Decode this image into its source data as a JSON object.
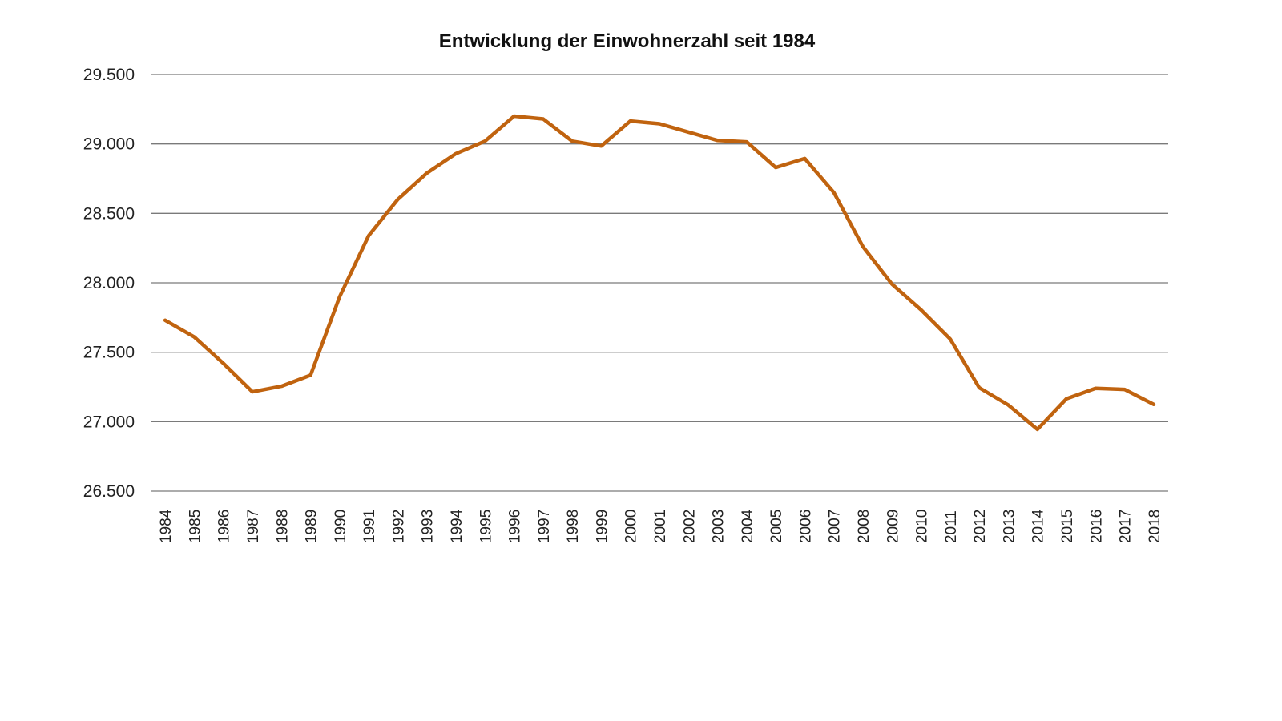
{
  "chart_data": {
    "type": "line",
    "title": "Entwicklung der Einwohnerzahl seit 1984",
    "xlabel": "",
    "ylabel": "",
    "ylim": [
      26500,
      29500
    ],
    "yticks": [
      29500,
      29000,
      28500,
      28000,
      27500,
      27000,
      26500
    ],
    "ytick_labels": [
      "29.500",
      "29.000",
      "28.500",
      "28.000",
      "27.500",
      "27.000",
      "26.500"
    ],
    "grid": true,
    "legend": null,
    "line_color": "#c0630f",
    "categories": [
      "1984",
      "1985",
      "1986",
      "1987",
      "1988",
      "1989",
      "1990",
      "1991",
      "1992",
      "1993",
      "1994",
      "1995",
      "1996",
      "1997",
      "1998",
      "1999",
      "2000",
      "2001",
      "2002",
      "2003",
      "2004",
      "2005",
      "2006",
      "2007",
      "2008",
      "2009",
      "2010",
      "2011",
      "2012",
      "2013",
      "2014",
      "2015",
      "2016",
      "2017",
      "2018"
    ],
    "series": [
      {
        "name": "Einwohnerzahl",
        "values": [
          27730,
          27610,
          27420,
          27215,
          27255,
          27335,
          27900,
          28340,
          28600,
          28790,
          28930,
          29020,
          29200,
          29180,
          29020,
          28985,
          29165,
          29145,
          29085,
          29025,
          29015,
          28830,
          28895,
          28650,
          28260,
          27990,
          27805,
          27595,
          27245,
          27120,
          26945,
          27165,
          27240,
          27232,
          27125
        ]
      }
    ]
  }
}
